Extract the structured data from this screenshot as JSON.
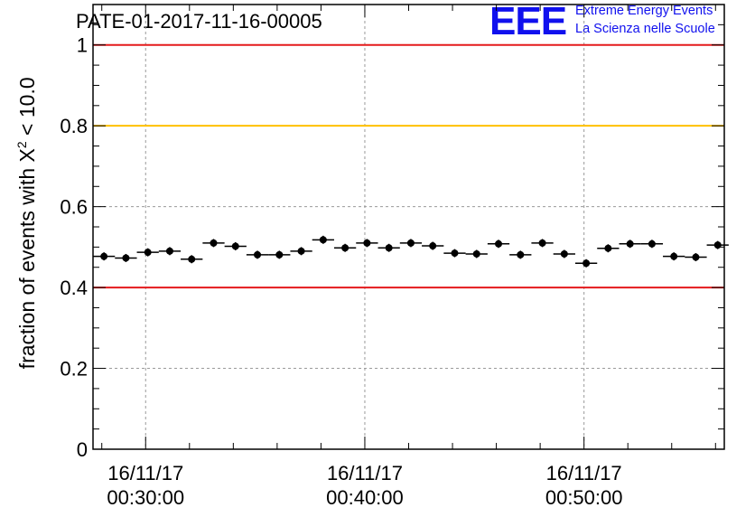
{
  "chart_data": {
    "type": "scatter",
    "title": "PATE-01-2017-11-16-00005",
    "ylabel": {
      "pre": "fraction of events with X",
      "sup": "2",
      "post": " < 10.0"
    },
    "ylim": [
      0,
      1.1
    ],
    "yticks": [
      "0",
      "0.2",
      "0.4",
      "0.6",
      "0.8",
      "1"
    ],
    "xlim_minutes": [
      27.6,
      56.4
    ],
    "xticks": [
      {
        "minute": 30,
        "date": "16/11/17",
        "time": "00:30:00"
      },
      {
        "minute": 40,
        "date": "16/11/17",
        "time": "00:40:00"
      },
      {
        "minute": 50,
        "date": "16/11/17",
        "time": "00:50:00"
      }
    ],
    "grid": true,
    "bin_width_minutes": 1,
    "x_minutes": [
      28.1,
      29.1,
      30.1,
      31.1,
      32.1,
      33.1,
      34.1,
      35.1,
      36.1,
      37.1,
      38.1,
      39.1,
      40.1,
      41.1,
      42.1,
      43.1,
      44.1,
      45.1,
      46.1,
      47.1,
      48.1,
      49.1,
      50.1,
      51.1,
      52.1,
      53.1,
      54.1,
      55.1,
      56.1
    ],
    "values": [
      0.477,
      0.473,
      0.487,
      0.49,
      0.47,
      0.51,
      0.502,
      0.481,
      0.481,
      0.49,
      0.518,
      0.498,
      0.51,
      0.498,
      0.51,
      0.503,
      0.485,
      0.483,
      0.508,
      0.481,
      0.51,
      0.483,
      0.46,
      0.497,
      0.508,
      0.508,
      0.477,
      0.475,
      0.505
    ],
    "errors": [
      0.01,
      0.01,
      0.01,
      0.01,
      0.01,
      0.01,
      0.01,
      0.01,
      0.01,
      0.01,
      0.01,
      0.01,
      0.01,
      0.01,
      0.01,
      0.01,
      0.01,
      0.01,
      0.01,
      0.01,
      0.01,
      0.01,
      0.01,
      0.01,
      0.01,
      0.01,
      0.01,
      0.01,
      0.01
    ],
    "reference_lines": [
      {
        "y": 1.0,
        "color": "#e41a1c"
      },
      {
        "y": 0.8,
        "color": "#ffc000"
      },
      {
        "y": 0.4,
        "color": "#e41a1c"
      }
    ]
  },
  "logo": {
    "text": "EEE",
    "line1": "Extreme Energy Events",
    "line2": "La Scienza nelle Scuole",
    "color": "#1010ee"
  }
}
